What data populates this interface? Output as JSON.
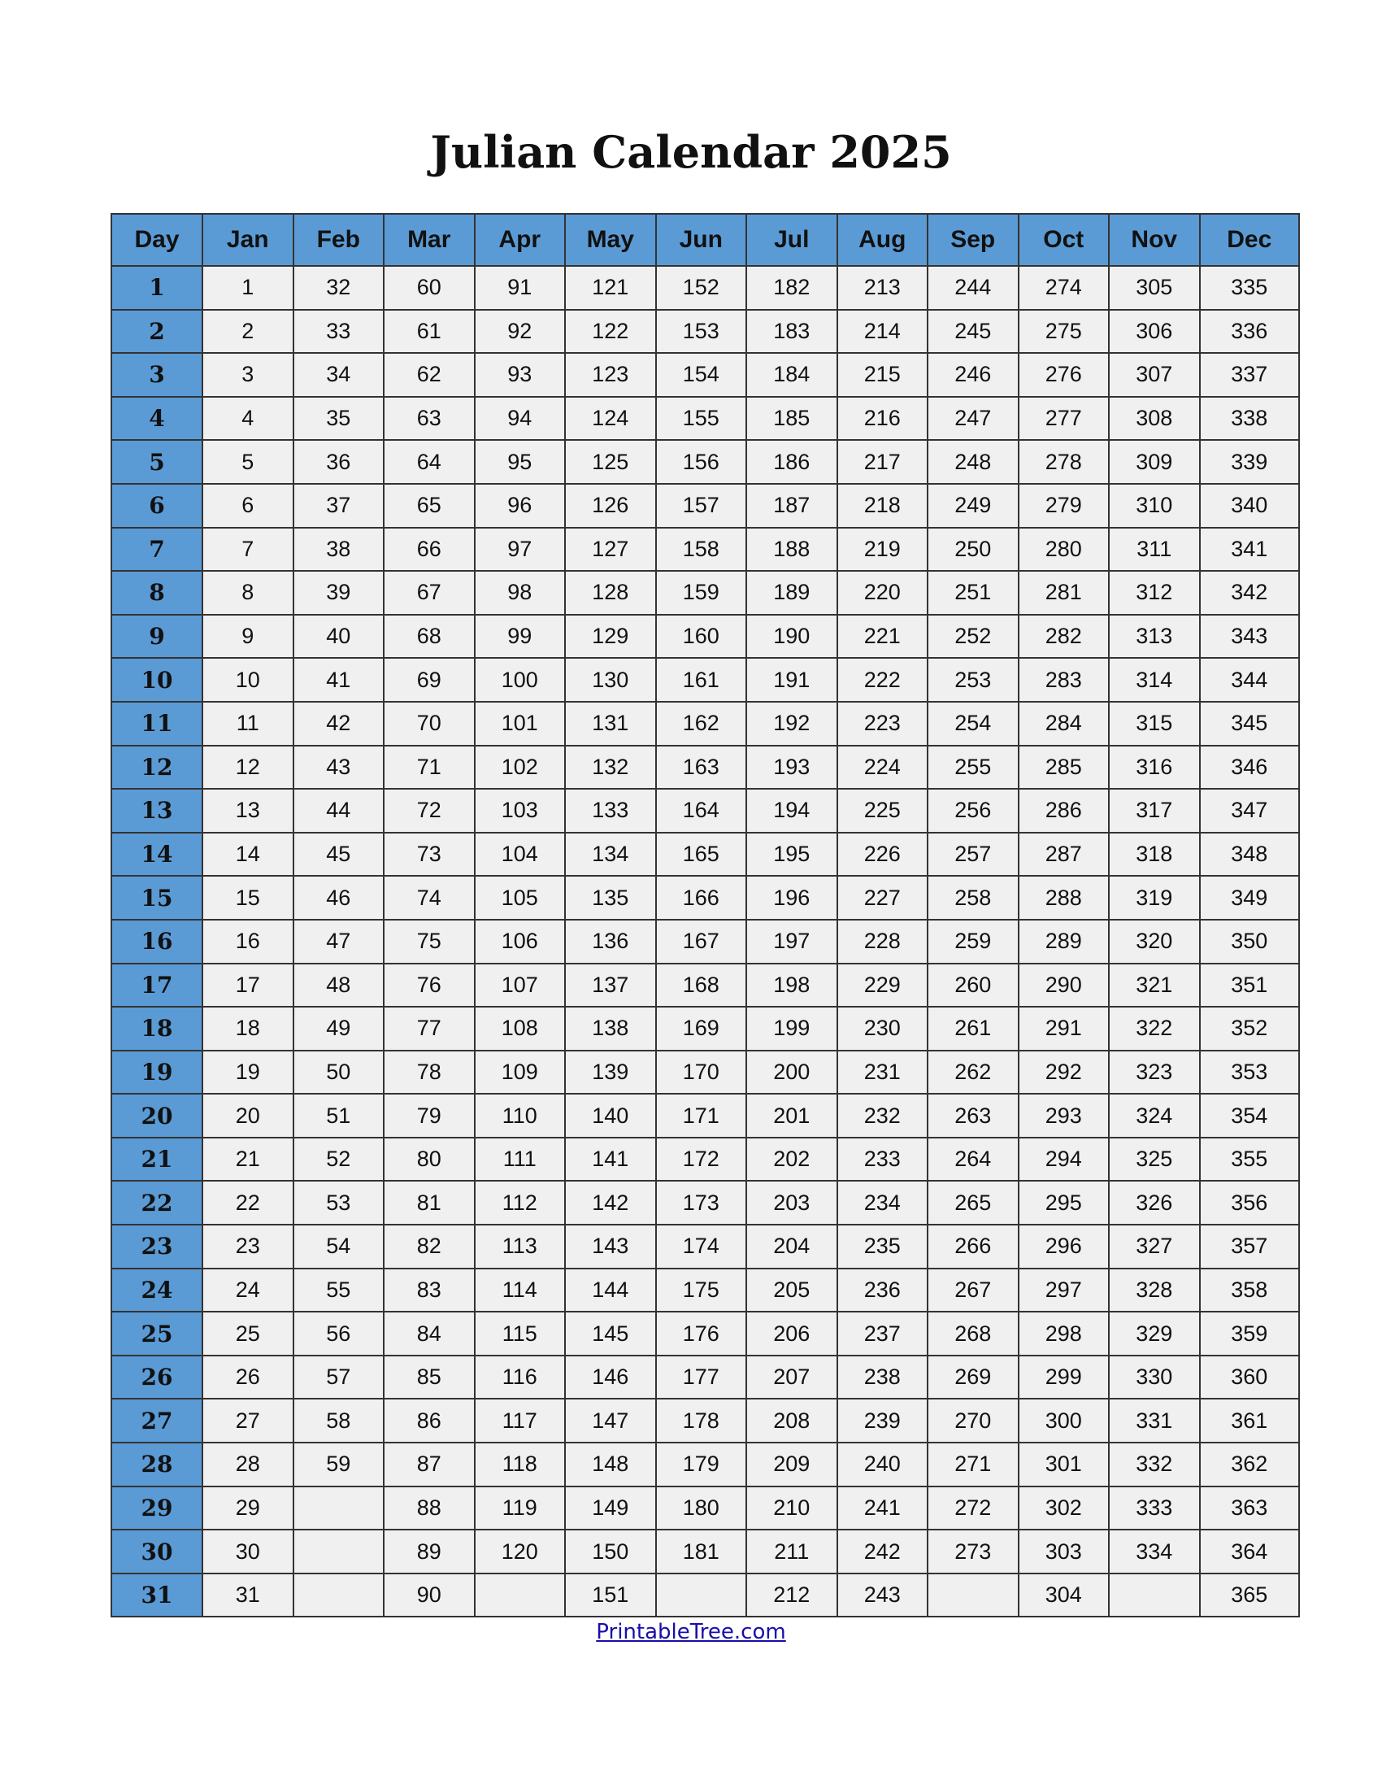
{
  "title": "Julian Calendar 2025",
  "headers": [
    "Day",
    "Jan",
    "Feb",
    "Mar",
    "Apr",
    "May",
    "Jun",
    "Jul",
    "Aug",
    "Sep",
    "Oct",
    "Nov",
    "Dec"
  ],
  "rows": [
    [
      "1",
      "1",
      "32",
      "60",
      "91",
      "121",
      "152",
      "182",
      "213",
      "244",
      "274",
      "305",
      "335"
    ],
    [
      "2",
      "2",
      "33",
      "61",
      "92",
      "122",
      "153",
      "183",
      "214",
      "245",
      "275",
      "306",
      "336"
    ],
    [
      "3",
      "3",
      "34",
      "62",
      "93",
      "123",
      "154",
      "184",
      "215",
      "246",
      "276",
      "307",
      "337"
    ],
    [
      "4",
      "4",
      "35",
      "63",
      "94",
      "124",
      "155",
      "185",
      "216",
      "247",
      "277",
      "308",
      "338"
    ],
    [
      "5",
      "5",
      "36",
      "64",
      "95",
      "125",
      "156",
      "186",
      "217",
      "248",
      "278",
      "309",
      "339"
    ],
    [
      "6",
      "6",
      "37",
      "65",
      "96",
      "126",
      "157",
      "187",
      "218",
      "249",
      "279",
      "310",
      "340"
    ],
    [
      "7",
      "7",
      "38",
      "66",
      "97",
      "127",
      "158",
      "188",
      "219",
      "250",
      "280",
      "311",
      "341"
    ],
    [
      "8",
      "8",
      "39",
      "67",
      "98",
      "128",
      "159",
      "189",
      "220",
      "251",
      "281",
      "312",
      "342"
    ],
    [
      "9",
      "9",
      "40",
      "68",
      "99",
      "129",
      "160",
      "190",
      "221",
      "252",
      "282",
      "313",
      "343"
    ],
    [
      "10",
      "10",
      "41",
      "69",
      "100",
      "130",
      "161",
      "191",
      "222",
      "253",
      "283",
      "314",
      "344"
    ],
    [
      "11",
      "11",
      "42",
      "70",
      "101",
      "131",
      "162",
      "192",
      "223",
      "254",
      "284",
      "315",
      "345"
    ],
    [
      "12",
      "12",
      "43",
      "71",
      "102",
      "132",
      "163",
      "193",
      "224",
      "255",
      "285",
      "316",
      "346"
    ],
    [
      "13",
      "13",
      "44",
      "72",
      "103",
      "133",
      "164",
      "194",
      "225",
      "256",
      "286",
      "317",
      "347"
    ],
    [
      "14",
      "14",
      "45",
      "73",
      "104",
      "134",
      "165",
      "195",
      "226",
      "257",
      "287",
      "318",
      "348"
    ],
    [
      "15",
      "15",
      "46",
      "74",
      "105",
      "135",
      "166",
      "196",
      "227",
      "258",
      "288",
      "319",
      "349"
    ],
    [
      "16",
      "16",
      "47",
      "75",
      "106",
      "136",
      "167",
      "197",
      "228",
      "259",
      "289",
      "320",
      "350"
    ],
    [
      "17",
      "17",
      "48",
      "76",
      "107",
      "137",
      "168",
      "198",
      "229",
      "260",
      "290",
      "321",
      "351"
    ],
    [
      "18",
      "18",
      "49",
      "77",
      "108",
      "138",
      "169",
      "199",
      "230",
      "261",
      "291",
      "322",
      "352"
    ],
    [
      "19",
      "19",
      "50",
      "78",
      "109",
      "139",
      "170",
      "200",
      "231",
      "262",
      "292",
      "323",
      "353"
    ],
    [
      "20",
      "20",
      "51",
      "79",
      "110",
      "140",
      "171",
      "201",
      "232",
      "263",
      "293",
      "324",
      "354"
    ],
    [
      "21",
      "21",
      "52",
      "80",
      "111",
      "141",
      "172",
      "202",
      "233",
      "264",
      "294",
      "325",
      "355"
    ],
    [
      "22",
      "22",
      "53",
      "81",
      "112",
      "142",
      "173",
      "203",
      "234",
      "265",
      "295",
      "326",
      "356"
    ],
    [
      "23",
      "23",
      "54",
      "82",
      "113",
      "143",
      "174",
      "204",
      "235",
      "266",
      "296",
      "327",
      "357"
    ],
    [
      "24",
      "24",
      "55",
      "83",
      "114",
      "144",
      "175",
      "205",
      "236",
      "267",
      "297",
      "328",
      "358"
    ],
    [
      "25",
      "25",
      "56",
      "84",
      "115",
      "145",
      "176",
      "206",
      "237",
      "268",
      "298",
      "329",
      "359"
    ],
    [
      "26",
      "26",
      "57",
      "85",
      "116",
      "146",
      "177",
      "207",
      "238",
      "269",
      "299",
      "330",
      "360"
    ],
    [
      "27",
      "27",
      "58",
      "86",
      "117",
      "147",
      "178",
      "208",
      "239",
      "270",
      "300",
      "331",
      "361"
    ],
    [
      "28",
      "28",
      "59",
      "87",
      "118",
      "148",
      "179",
      "209",
      "240",
      "271",
      "301",
      "332",
      "362"
    ],
    [
      "29",
      "29",
      "",
      "88",
      "119",
      "149",
      "180",
      "210",
      "241",
      "272",
      "302",
      "333",
      "363"
    ],
    [
      "30",
      "30",
      "",
      "89",
      "120",
      "150",
      "181",
      "211",
      "242",
      "273",
      "303",
      "334",
      "364"
    ],
    [
      "31",
      "31",
      "",
      "90",
      "",
      "151",
      "",
      "212",
      "243",
      "",
      "304",
      "",
      "365"
    ]
  ],
  "footer_link": "PrintableTree.com",
  "colors": {
    "header_bg": "#5b9bd5",
    "cell_bg": "#f0f0f0",
    "link": "#1a0dab"
  }
}
